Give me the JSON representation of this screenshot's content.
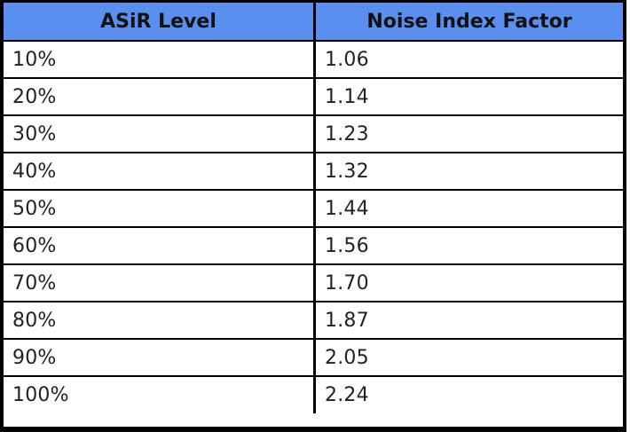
{
  "table": {
    "headers": [
      "ASiR Level",
      "Noise Index Factor"
    ],
    "rows": [
      [
        "10%",
        "1.06"
      ],
      [
        "20%",
        "1.14"
      ],
      [
        "30%",
        "1.23"
      ],
      [
        "40%",
        "1.32"
      ],
      [
        "50%",
        "1.44"
      ],
      [
        "60%",
        "1.56"
      ],
      [
        "70%",
        "1.70"
      ],
      [
        "80%",
        "1.87"
      ],
      [
        "90%",
        "2.05"
      ],
      [
        "100%",
        "2.24"
      ]
    ]
  },
  "colors": {
    "header_bg": "#5b8fef",
    "border": "#000000",
    "text": "#222222"
  }
}
